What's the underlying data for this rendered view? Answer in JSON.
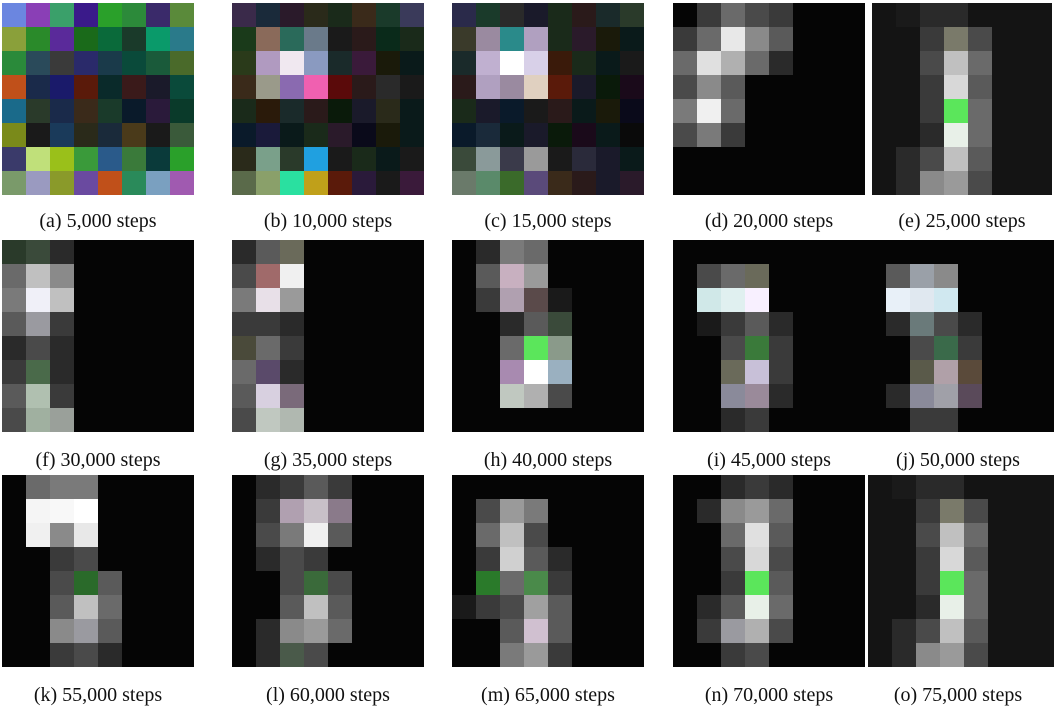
{
  "captions": [
    "(a) 5,000 steps",
    "(b) 10,000 steps",
    "(c) 15,000 steps",
    "(d) 20,000 steps",
    "(e) 25,000 steps",
    "(f) 30,000 steps",
    "(g) 35,000 steps",
    "(h) 40,000 steps",
    "(i) 45,000 steps",
    "(j) 50,000 steps",
    "(k) 55,000 steps",
    "(l) 60,000 steps",
    "(m) 65,000 steps",
    "(n) 70,000 steps",
    "(o) 75,000 steps"
  ],
  "colors": {
    "background": "#ffffff",
    "panel_dark": "#050505",
    "panel_dark_alt": "#141414",
    "caption_text": "#111111",
    "green_cell": "#5be65b",
    "white_cell": "#f5f5f5"
  }
}
